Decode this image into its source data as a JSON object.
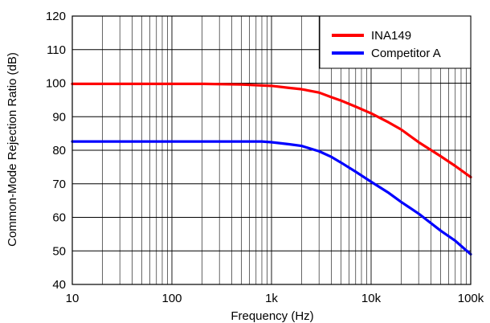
{
  "chart_data": {
    "type": "line",
    "title": "",
    "xlabel": "Frequency (Hz)",
    "ylabel": "Common-Mode Rejection Ratio (dB)",
    "xscale": "log",
    "xlim": [
      10,
      100000
    ],
    "ylim": [
      40,
      120
    ],
    "grid": true,
    "legend_position": "top-right",
    "x_ticks": [
      {
        "value": 10,
        "label": "10"
      },
      {
        "value": 100,
        "label": "100"
      },
      {
        "value": 1000,
        "label": "1k"
      },
      {
        "value": 10000,
        "label": "10k"
      },
      {
        "value": 100000,
        "label": "100k"
      }
    ],
    "y_ticks": [
      40,
      50,
      60,
      70,
      80,
      90,
      100,
      110,
      120
    ],
    "series": [
      {
        "name": "INA149",
        "color": "#ff0000",
        "x": [
          10,
          20,
          50,
          100,
          200,
          500,
          1000,
          1500,
          2000,
          3000,
          4000,
          5000,
          7000,
          10000,
          15000,
          20000,
          30000,
          50000,
          70000,
          100000
        ],
        "y": [
          99.8,
          99.8,
          99.8,
          99.8,
          99.8,
          99.6,
          99.2,
          98.6,
          98.2,
          97.2,
          95.8,
          94.8,
          93.0,
          91.0,
          88.3,
          86.2,
          82.4,
          78.2,
          75.3,
          72.0
        ]
      },
      {
        "name": "Competitor A",
        "color": "#0000ff",
        "x": [
          10,
          20,
          50,
          100,
          200,
          500,
          800,
          1000,
          1500,
          2000,
          3000,
          4000,
          5000,
          7000,
          10000,
          15000,
          20000,
          30000,
          50000,
          70000,
          100000
        ],
        "y": [
          82.6,
          82.6,
          82.6,
          82.6,
          82.6,
          82.6,
          82.6,
          82.4,
          81.8,
          81.3,
          79.7,
          78.0,
          76.3,
          73.6,
          70.6,
          67.3,
          64.6,
          61.1,
          56.0,
          53.0,
          49.0
        ]
      }
    ]
  }
}
